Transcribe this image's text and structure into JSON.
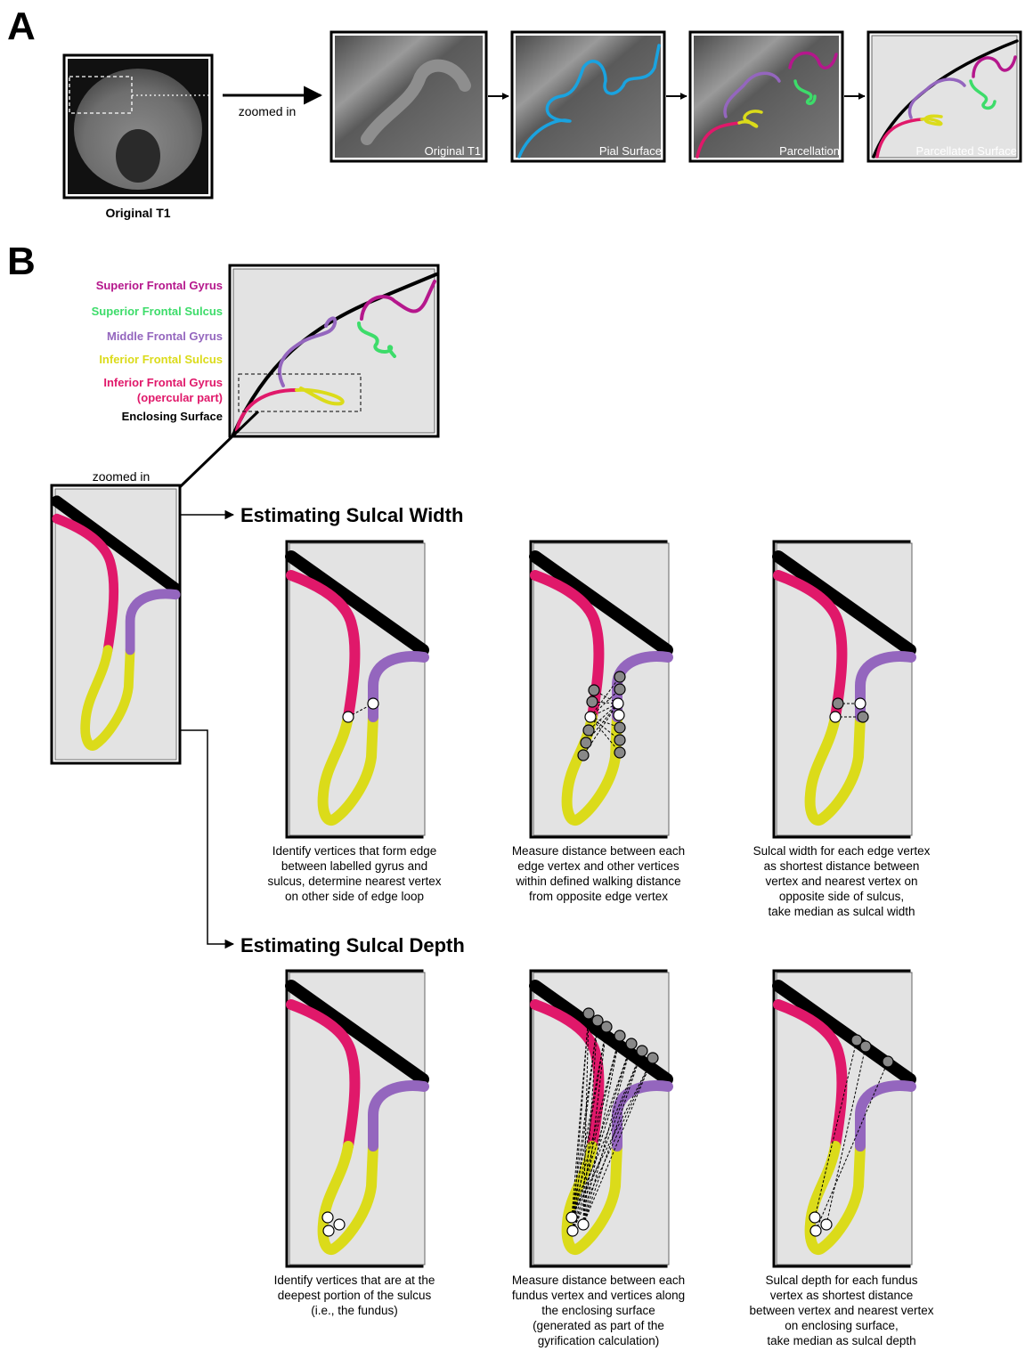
{
  "panel_a": {
    "label": "A",
    "thumbnail_caption": "Original T1",
    "arrow_label": "zoomed in",
    "panels": [
      "Original T1",
      "Pial Surface",
      "Parcellation",
      "Parcellated Surface"
    ]
  },
  "panel_b": {
    "label": "B",
    "legend": [
      [
        "Superior Frontal Gyrus"
      ],
      [
        "Superior Frontal Sulcus"
      ],
      [
        "Middle Frontal Gyrus"
      ],
      [
        "Inferior Frontal Sulcus"
      ],
      [
        "Inferior Frontal Gyrus",
        "(opercular part)"
      ],
      [
        "Enclosing Surface"
      ]
    ],
    "zoom_label": "zoomed in",
    "width": {
      "title": "Estimating Sulcal Width",
      "captions": [
        [
          "Identify vertices that form edge",
          "between labelled gyrus and",
          "sulcus, determine nearest vertex",
          "on other side of edge loop"
        ],
        [
          "Measure distance between each",
          "edge vertex and other vertices",
          "within defined walking distance",
          "from opposite edge vertex"
        ],
        [
          "Sulcal width for each edge vertex",
          "as shortest distance between",
          "vertex and nearest vertex on",
          "opposite side of sulcus,",
          "take median as sulcal width"
        ]
      ]
    },
    "depth": {
      "title": "Estimating Sulcal Depth",
      "captions": [
        [
          "Identify vertices that are at the",
          "deepest portion of the sulcus",
          "(i.e., the fundus)"
        ],
        [
          "Measure distance between each",
          "fundus vertex and vertices along",
          "the enclosing surface",
          "(generated as part of the",
          "gyrification calculation)"
        ],
        [
          "Sulcal depth for each fundus",
          "vertex as shortest distance",
          "between vertex and nearest vertex",
          "on enclosing surface,",
          "take median as sulcal depth"
        ]
      ]
    }
  }
}
